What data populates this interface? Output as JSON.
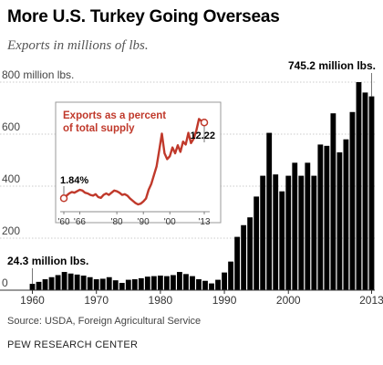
{
  "title": "More U.S. Turkey Going Overseas",
  "subtitle": "Exports in millions of lbs.",
  "source": "Source: USDA, Foreign Agricultural Service",
  "brand": "PEW RESEARCH CENTER",
  "colors": {
    "bar": "#000000",
    "inset_line": "#c0392b",
    "grid": "#bbbbbb",
    "axis": "#333333"
  },
  "chart_data": {
    "type": "bar",
    "ylabel_unit": "million lbs.",
    "ylim": [
      0,
      800
    ],
    "yticks": [
      0,
      200,
      400,
      600,
      800
    ],
    "ytick_labels": [
      "0",
      "200",
      "400",
      "600",
      "800 million lbs."
    ],
    "xticks": [
      1960,
      1970,
      1980,
      1990,
      2000,
      2013
    ],
    "xtick_labels": [
      "1960",
      "1970",
      "1980",
      "1990",
      "2000",
      "2013"
    ],
    "grid": true,
    "x": [
      1960,
      1961,
      1962,
      1963,
      1964,
      1965,
      1966,
      1967,
      1968,
      1969,
      1970,
      1971,
      1972,
      1973,
      1974,
      1975,
      1976,
      1977,
      1978,
      1979,
      1980,
      1981,
      1982,
      1983,
      1984,
      1985,
      1986,
      1987,
      1988,
      1989,
      1990,
      1991,
      1992,
      1993,
      1994,
      1995,
      1996,
      1997,
      1998,
      1999,
      2000,
      2001,
      2002,
      2003,
      2004,
      2005,
      2006,
      2007,
      2008,
      2009,
      2010,
      2011,
      2012,
      2013
    ],
    "values": [
      24.3,
      32,
      42,
      50,
      58,
      70,
      64,
      60,
      56,
      50,
      42,
      44,
      50,
      38,
      28,
      40,
      42,
      46,
      52,
      54,
      56,
      54,
      58,
      70,
      62,
      54,
      42,
      36,
      26,
      40,
      68,
      110,
      205,
      250,
      280,
      360,
      440,
      605,
      445,
      380,
      440,
      490,
      440,
      490,
      440,
      560,
      555,
      680,
      530,
      580,
      685,
      800,
      760,
      745.2
    ],
    "annotations": [
      {
        "text": "24.3 million lbs.",
        "x": 1960,
        "value": 24.3
      },
      {
        "text": "745.2 million lbs.",
        "x": 2013,
        "value": 745.2
      }
    ],
    "inset": {
      "type": "line",
      "title": "Exports as a percent of total supply",
      "title_lines": [
        "Exports as a percent",
        "of total supply"
      ],
      "xticks": [
        1960,
        1966,
        1980,
        1990,
        2000,
        2013
      ],
      "xtick_labels": [
        "'60",
        "'66",
        "'80",
        "'90",
        "'00",
        "'13"
      ],
      "ylim": [
        0,
        14
      ],
      "x": [
        1960,
        1961,
        1962,
        1963,
        1964,
        1965,
        1966,
        1967,
        1968,
        1969,
        1970,
        1971,
        1972,
        1973,
        1974,
        1975,
        1976,
        1977,
        1978,
        1979,
        1980,
        1981,
        1982,
        1983,
        1984,
        1985,
        1986,
        1987,
        1988,
        1989,
        1990,
        1991,
        1992,
        1993,
        1994,
        1995,
        1996,
        1997,
        1998,
        1999,
        2000,
        2001,
        2002,
        2003,
        2004,
        2005,
        2006,
        2007,
        2008,
        2009,
        2010,
        2011,
        2012,
        2013
      ],
      "values": [
        1.84,
        2.2,
        2.5,
        2.7,
        2.6,
        2.8,
        3.0,
        2.9,
        2.6,
        2.5,
        2.3,
        2.2,
        2.4,
        2.0,
        1.9,
        2.3,
        2.5,
        2.3,
        2.6,
        2.9,
        2.8,
        2.6,
        2.3,
        2.4,
        2.2,
        1.8,
        1.5,
        1.2,
        1.0,
        1.1,
        1.4,
        1.8,
        3.0,
        3.8,
        5.0,
        6.2,
        8.4,
        10.7,
        8.0,
        7.2,
        7.6,
        8.8,
        8.0,
        9.1,
        8.2,
        9.6,
        9.2,
        10.8,
        9.4,
        10.0,
        11.1,
        12.7,
        12.4,
        12.22
      ],
      "annotations": [
        {
          "text": "1.84%",
          "x": 1960,
          "value": 1.84
        },
        {
          "text": "12.22",
          "x": 2013,
          "value": 12.22
        }
      ]
    }
  }
}
